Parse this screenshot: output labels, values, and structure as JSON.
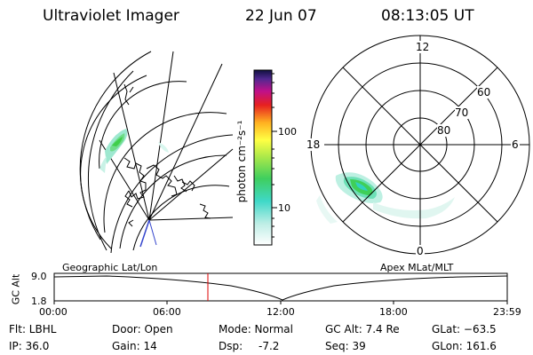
{
  "header": {
    "instrument": "Ultraviolet Imager",
    "date": "22 Jun 07",
    "time": "08:13:05 UT"
  },
  "colorbar": {
    "unit_label": "photon cm⁻²s⁻¹",
    "tick_labels": [
      "10",
      "100"
    ]
  },
  "polar_plot": {
    "mlt_labels": {
      "top": "12",
      "left": "18",
      "right": "6",
      "bottom": "0"
    },
    "mlat_labels": [
      "60",
      "70",
      "80"
    ]
  },
  "timeline": {
    "y_axis_label": "GC Alt",
    "y_ticks": [
      "9.0",
      "1.8"
    ],
    "left_title": "Geographic Lat/Lon",
    "right_title": "Apex MLat/MLT",
    "x_ticks": [
      "00:00",
      "06:00",
      "12:00",
      "18:00",
      "23:59"
    ],
    "current_time": "08:13"
  },
  "info": {
    "filter": "Flt: LBHL",
    "ip": "IP: 36.0",
    "door": "Door: Open",
    "gain": "Gain: 14",
    "mode": "Mode: Normal",
    "dsp_label": "Dsp:",
    "dsp_value": "-7.2",
    "gc_alt": "GC Alt: 7.4 Re",
    "seq": "Seq: 39",
    "glat": "GLat: −63.5",
    "glon": "GLon: 161.6"
  },
  "colors": {
    "accent_marker": "#dd0000",
    "aurora_green": "#44d060",
    "aurora_cyan": "#7fe0c8",
    "coast": "#000000"
  }
}
